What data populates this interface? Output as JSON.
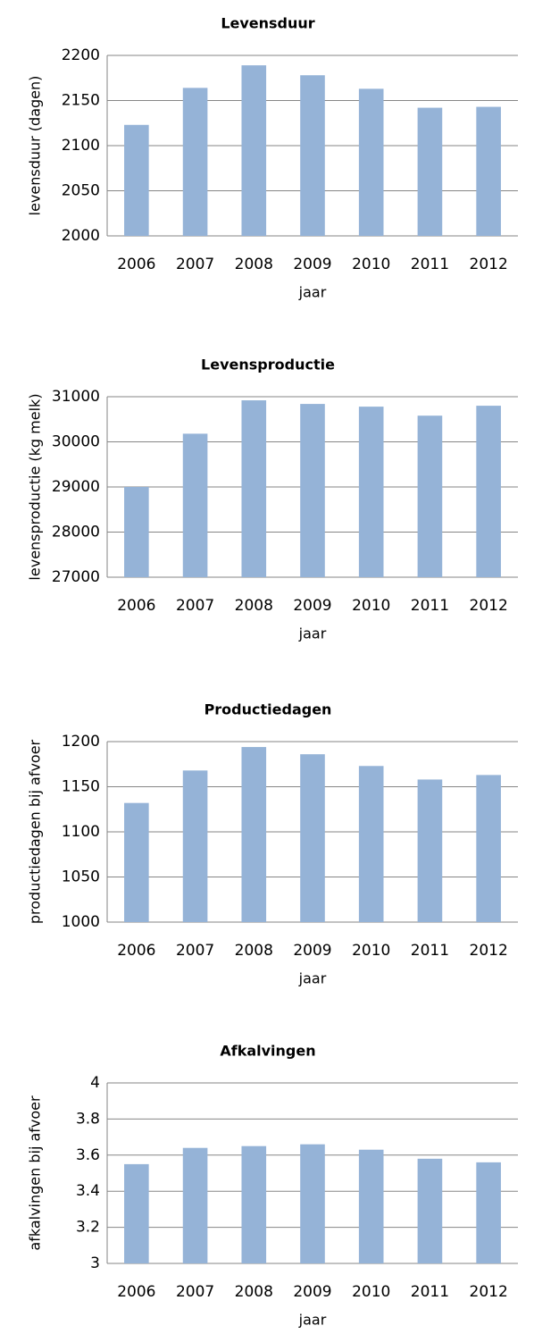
{
  "chart_data": [
    {
      "type": "bar",
      "title": "Levensduur",
      "x_label": "jaar",
      "y_label": "levensduur (dagen)",
      "categories": [
        "2006",
        "2007",
        "2008",
        "2009",
        "2010",
        "2011",
        "2012"
      ],
      "values": [
        2123,
        2164,
        2189,
        2178,
        2163,
        2142,
        2143
      ],
      "color": "#95b3d7",
      "ylim": [
        2000,
        2200
      ],
      "yticks": [
        2000,
        2050,
        2100,
        2150,
        2200
      ],
      "grid": true
    },
    {
      "type": "bar",
      "title": "Levensproductie",
      "x_label": "jaar",
      "y_label": "levensproductie (kg melk)",
      "categories": [
        "2006",
        "2007",
        "2008",
        "2009",
        "2010",
        "2011",
        "2012"
      ],
      "values": [
        29000,
        30180,
        30920,
        30840,
        30780,
        30580,
        30800
      ],
      "color": "#95b3d7",
      "ylim": [
        27000,
        31000
      ],
      "yticks": [
        27000,
        28000,
        29000,
        30000,
        31000
      ],
      "grid": true
    },
    {
      "type": "bar",
      "title": "Productiedagen",
      "x_label": "jaar",
      "y_label": "productiedagen bij afvoer",
      "categories": [
        "2006",
        "2007",
        "2008",
        "2009",
        "2010",
        "2011",
        "2012"
      ],
      "values": [
        1132,
        1168,
        1194,
        1186,
        1173,
        1158,
        1163
      ],
      "color": "#95b3d7",
      "ylim": [
        1000,
        1200
      ],
      "yticks": [
        1000,
        1050,
        1100,
        1150,
        1200
      ],
      "grid": true
    },
    {
      "type": "bar",
      "title": "Afkalvingen",
      "x_label": "jaar",
      "y_label": "afkalvingen bij afvoer",
      "categories": [
        "2006",
        "2007",
        "2008",
        "2009",
        "2010",
        "2011",
        "2012"
      ],
      "values": [
        3.55,
        3.64,
        3.65,
        3.66,
        3.63,
        3.58,
        3.56
      ],
      "color": "#95b3d7",
      "ylim": [
        3,
        4
      ],
      "yticks": [
        3,
        3.2,
        3.4,
        3.6,
        3.8,
        4
      ],
      "grid": true
    }
  ]
}
